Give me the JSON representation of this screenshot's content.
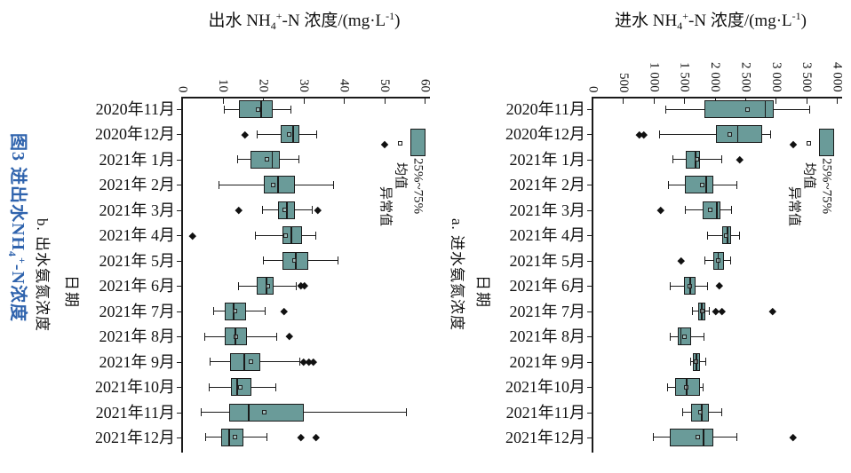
{
  "figure_caption": {
    "part1": "图3 进出水NH",
    "sub": "4",
    "sup": "+",
    "part2": "-N浓度"
  },
  "legend": {
    "items": [
      {
        "symbol": "diamond",
        "label": "异常值"
      },
      {
        "symbol": "square",
        "label": "均值"
      },
      {
        "symbol": "box",
        "label": "25%~75%"
      }
    ]
  },
  "colors": {
    "box_fill": "#6a9b99",
    "caption_blue": "#2f63ad",
    "line": "#1a1a1a"
  },
  "chart_data": [
    {
      "type": "box",
      "id": "effluent",
      "orientation": "horizontal",
      "panel_label": "b. 出水氨氮浓度",
      "date_axis_label": "日期",
      "title": {
        "p1": "出水 NH",
        "sub1": "4",
        "sup1": "+",
        "p2": "-N 浓度/(mg·L",
        "sup2": "-1",
        "p3": ")"
      },
      "xlim": [
        0,
        60
      ],
      "tick_values": [
        0,
        10,
        20,
        30,
        40,
        50,
        60
      ],
      "tick_labels": [
        "0",
        "10",
        "20",
        "30",
        "40",
        "50",
        "60"
      ],
      "categories": [
        "2020年11月",
        "2020年12月",
        "2021年 1月",
        "2021年 2月",
        "2021年 3月",
        "2021年 4月",
        "2021年 5月",
        "2021年 6月",
        "2021年 7月",
        "2021年 8月",
        "2021年 9月",
        "2021年10月",
        "2021年11月",
        "2021年12月"
      ],
      "boxes": [
        {
          "low": 10.5,
          "q1": 14.0,
          "median": 19.5,
          "q3": 22.5,
          "high": 27.0,
          "mean": 18.8,
          "outliers": []
        },
        {
          "low": 18.5,
          "q1": 24.5,
          "median": 27.5,
          "q3": 29.0,
          "high": 33.4,
          "mean": 26.4,
          "outliers": [
            15.5
          ]
        },
        {
          "low": 13.8,
          "q1": 17.0,
          "median": 22.3,
          "q3": 24.2,
          "high": 29.0,
          "mean": 20.9,
          "outliers": []
        },
        {
          "low": 9.2,
          "q1": 20.2,
          "median": 23.7,
          "q3": 27.9,
          "high": 37.5,
          "mean": 22.5,
          "outliers": []
        },
        {
          "low": 19.8,
          "q1": 23.7,
          "median": 25.9,
          "q3": 27.9,
          "high": 32.3,
          "mean": 25.3,
          "outliers": [
            14.1,
            33.6
          ]
        },
        {
          "low": 18.2,
          "q1": 24.8,
          "median": 27.0,
          "q3": 29.7,
          "high": 33.0,
          "mean": 25.7,
          "outliers": [
            2.5
          ]
        },
        {
          "low": 20.2,
          "q1": 24.8,
          "median": 28.1,
          "q3": 31.2,
          "high": 38.5,
          "mean": 27.8,
          "outliers": []
        },
        {
          "low": 13.9,
          "q1": 18.5,
          "median": 20.9,
          "q3": 22.7,
          "high": 28.2,
          "mean": 21.3,
          "outliers": [
            29.3,
            30.2
          ]
        },
        {
          "low": 7.7,
          "q1": 10.6,
          "median": 12.8,
          "q3": 15.8,
          "high": 20.5,
          "mean": 13.0,
          "outliers": [
            25.3
          ]
        },
        {
          "low": 5.5,
          "q1": 10.6,
          "median": 13.2,
          "q3": 16.0,
          "high": 23.3,
          "mean": 13.4,
          "outliers": [
            26.5
          ]
        },
        {
          "low": 7.0,
          "q1": 11.9,
          "median": 15.4,
          "q3": 19.3,
          "high": 29.2,
          "mean": 17.1,
          "outliers": [
            30.0,
            31.3,
            32.4
          ]
        },
        {
          "low": 6.6,
          "q1": 12.1,
          "median": 13.6,
          "q3": 17.1,
          "high": 23.1,
          "mean": 14.5,
          "outliers": []
        },
        {
          "low": 4.8,
          "q1": 11.6,
          "median": 16.5,
          "q3": 30.1,
          "high": 55.4,
          "mean": 20.4,
          "outliers": []
        },
        {
          "low": 5.9,
          "q1": 9.7,
          "median": 11.6,
          "q3": 15.2,
          "high": 20.9,
          "mean": 13.0,
          "outliers": [
            29.5,
            33.2
          ]
        }
      ]
    },
    {
      "type": "box",
      "id": "influent",
      "orientation": "horizontal",
      "panel_label": "a. 进水氨氮浓度",
      "date_axis_label": "日期",
      "title": {
        "p1": "进水 NH",
        "sub1": "4",
        "sup1": "+",
        "p2": "-N 浓度/(mg·L",
        "sup2": "-1",
        "p3": ")"
      },
      "xlim": [
        0,
        4000
      ],
      "tick_values": [
        0,
        500,
        1000,
        1500,
        2000,
        2500,
        3000,
        3500,
        4000
      ],
      "tick_labels": [
        "0",
        "500",
        "1 000",
        "1 500",
        "2 000",
        "2 500",
        "3 000",
        "3 500",
        "4 000"
      ],
      "categories": [
        "2020年11月",
        "2020年12月",
        "2021年 1月",
        "2021年 2月",
        "2021年 3月",
        "2021年 4月",
        "2021年 5月",
        "2021年 6月",
        "2021年 7月",
        "2021年 8月",
        "2021年 9月",
        "2021年10月",
        "2021年11月",
        "2021年12月"
      ],
      "boxes": [
        {
          "low": 1200,
          "q1": 1830,
          "median": 2830,
          "q3": 2960,
          "high": 3550,
          "mean": 2540,
          "outliers": []
        },
        {
          "low": 1100,
          "q1": 2020,
          "median": 2380,
          "q3": 2780,
          "high": 2920,
          "mean": 2250,
          "outliers": [
            760,
            840
          ]
        },
        {
          "low": 1310,
          "q1": 1530,
          "median": 1690,
          "q3": 1760,
          "high": 2120,
          "mean": 1710,
          "outliers": [
            2410
          ]
        },
        {
          "low": 1250,
          "q1": 1510,
          "median": 1860,
          "q3": 1980,
          "high": 2370,
          "mean": 1790,
          "outliers": []
        },
        {
          "low": 1520,
          "q1": 1810,
          "median": 2040,
          "q3": 2100,
          "high": 2280,
          "mean": 1930,
          "outliers": [
            1120
          ]
        },
        {
          "low": 1880,
          "q1": 2120,
          "median": 2210,
          "q3": 2270,
          "high": 2400,
          "mean": 2190,
          "outliers": []
        },
        {
          "low": 1840,
          "q1": 1980,
          "median": 2060,
          "q3": 2150,
          "high": 2260,
          "mean": 2060,
          "outliers": [
            1450
          ]
        },
        {
          "low": 1270,
          "q1": 1500,
          "median": 1600,
          "q3": 1690,
          "high": 1880,
          "mean": 1590,
          "outliers": [
            2080
          ]
        },
        {
          "low": 1640,
          "q1": 1730,
          "median": 1790,
          "q3": 1840,
          "high": 1910,
          "mean": 1790,
          "outliers": [
            2020,
            2120,
            2950
          ]
        },
        {
          "low": 1270,
          "q1": 1400,
          "median": 1450,
          "q3": 1620,
          "high": 1830,
          "mean": 1500,
          "outliers": []
        },
        {
          "low": 1605,
          "q1": 1645,
          "median": 1700,
          "q3": 1765,
          "high": 1860,
          "mean": 1700,
          "outliers": []
        },
        {
          "low": 1230,
          "q1": 1350,
          "median": 1545,
          "q3": 1760,
          "high": 1810,
          "mean": 1530,
          "outliers": []
        },
        {
          "low": 1480,
          "q1": 1620,
          "median": 1790,
          "q3": 1910,
          "high": 2120,
          "mean": 1770,
          "outliers": []
        },
        {
          "low": 990,
          "q1": 1265,
          "median": 1820,
          "q3": 1975,
          "high": 2370,
          "mean": 1730,
          "outliers": [
            3290
          ]
        }
      ]
    }
  ]
}
